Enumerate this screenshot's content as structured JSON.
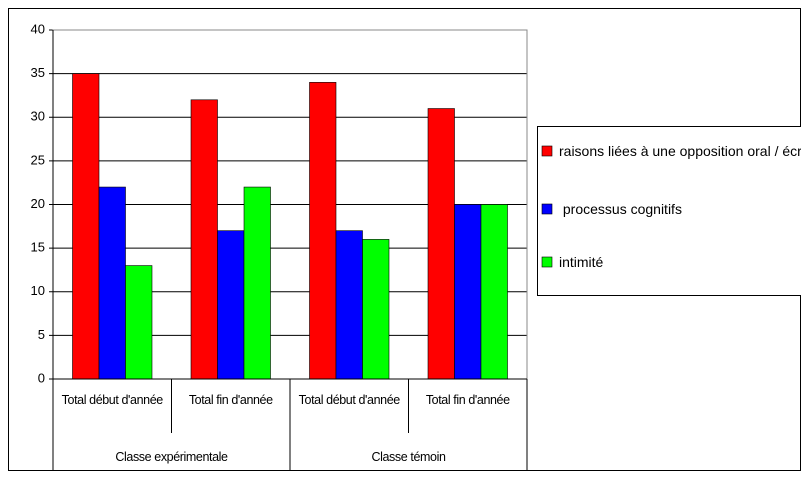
{
  "chart_data": {
    "type": "bar",
    "categories": [
      "Total début d'année",
      "Total fin d'année",
      "Total début d'année",
      "Total fin d'année"
    ],
    "category_groups": [
      "Classe expérimentale",
      "Classe témoin"
    ],
    "series": [
      {
        "name": "raisons liées à une opposition oral / écrit",
        "color": "#ff0000",
        "values": [
          35,
          32,
          34,
          31
        ]
      },
      {
        "name": " processus cognitifs",
        "color": "#0000ff",
        "values": [
          22,
          17,
          17,
          20
        ]
      },
      {
        "name": "intimité",
        "color": "#00ff00",
        "values": [
          13,
          22,
          16,
          20
        ]
      }
    ],
    "ylim": [
      0,
      40
    ],
    "yticks": [
      0,
      5,
      10,
      15,
      20,
      25,
      30,
      35,
      40
    ],
    "grid": true,
    "legend": "right"
  }
}
